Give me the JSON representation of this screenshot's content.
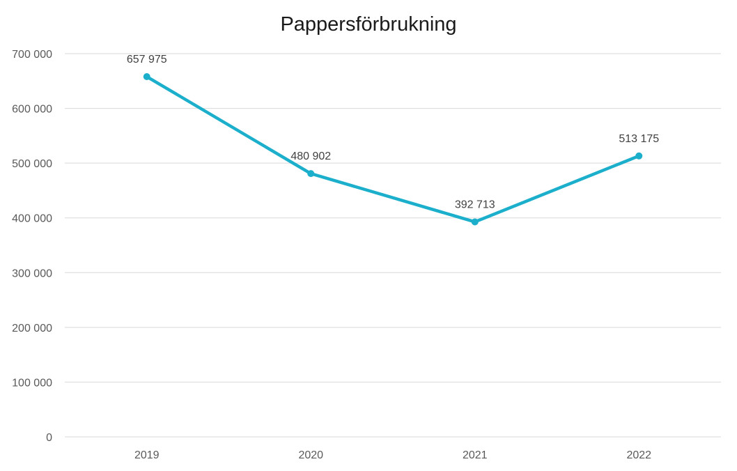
{
  "chart_data": {
    "type": "line",
    "title": "Pappersförbrukning",
    "categories": [
      "2019",
      "2020",
      "2021",
      "2022"
    ],
    "series": [
      {
        "values": [
          657975,
          480902,
          392713,
          513175
        ],
        "labels": [
          "657 975",
          "480 902",
          "392 713",
          "513 175"
        ],
        "color": "#1BAFCB"
      }
    ],
    "ylim": [
      0,
      700000
    ],
    "yticks": [
      0,
      100000,
      200000,
      300000,
      400000,
      500000,
      600000,
      700000
    ],
    "ytick_labels": [
      "0",
      "100 000",
      "200 000",
      "300 000",
      "400 000",
      "500 000",
      "600 000",
      "700 000"
    ],
    "grid": true,
    "legend": "none"
  }
}
